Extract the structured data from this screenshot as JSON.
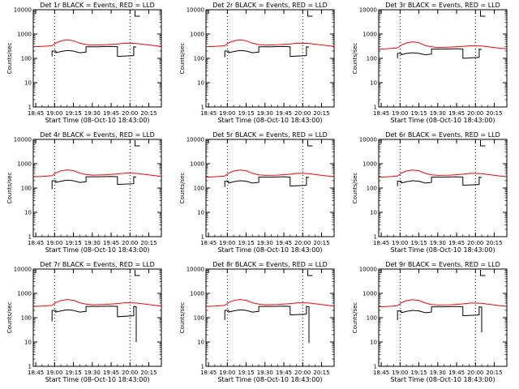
{
  "chart_data": {
    "type": "line",
    "scale": "log",
    "ylabel": "Counts/sec",
    "xlabel": "Start Time (08-Oct-10 18:43:00)",
    "ylim": [
      1,
      10000
    ],
    "y_ticks": [
      1,
      10,
      100,
      1000,
      10000
    ],
    "y_tick_labels": [
      "1",
      "10",
      "100",
      "1000",
      "10000"
    ],
    "xlim": [
      "18:43",
      "20:25"
    ],
    "x_tick_values": [
      "18:45",
      "19:00",
      "19:15",
      "19:30",
      "19:45",
      "20:00",
      "20:15"
    ],
    "x_tick_labels": [
      "18:45",
      "19:00",
      "19:15",
      "19:30",
      "19:45",
      "20:00",
      "20:15"
    ],
    "markers_dotted": [
      "19:00",
      "20:00"
    ],
    "colors": {
      "events": "#000000",
      "lld": "#ff0000"
    },
    "panels": [
      {
        "title": "Det 1r BLACK = Events, RED = LLD",
        "series": [
          {
            "color": "red",
            "x": [
              "18:43",
              "18:50",
              "18:58",
              "19:01",
              "19:05",
              "19:10",
              "19:15",
              "19:20",
              "19:25",
              "19:30",
              "19:40",
              "19:50",
              "19:56",
              "20:05",
              "20:12",
              "20:20",
              "20:25"
            ],
            "y": [
              300,
              310,
              330,
              430,
              520,
              580,
              530,
              420,
              370,
              350,
              360,
              390,
              420,
              410,
              370,
              330,
              310
            ]
          },
          {
            "color": "black",
            "x": [
              "18:58",
              "18:58",
              "19:01",
              "19:01",
              "19:05",
              "19:10",
              "19:15",
              "19:20",
              "19:25",
              "19:25",
              "19:35",
              "19:45",
              "19:50",
              "19:50",
              "20:03",
              "20:03",
              "20:05"
            ],
            "y": [
              120,
              200,
              200,
              170,
              190,
              210,
              200,
              170,
              180,
              300,
              300,
              310,
              300,
              120,
              130,
              300,
              290
            ]
          }
        ]
      },
      {
        "title": "Det 2r BLACK = Events, RED = LLD",
        "series": [
          {
            "color": "red",
            "x": [
              "18:43",
              "18:50",
              "18:58",
              "19:01",
              "19:05",
              "19:10",
              "19:15",
              "19:20",
              "19:25",
              "19:30",
              "19:40",
              "19:50",
              "19:56",
              "20:05",
              "20:12",
              "20:20",
              "20:25"
            ],
            "y": [
              300,
              310,
              330,
              430,
              520,
              580,
              530,
              420,
              370,
              350,
              360,
              390,
              420,
              410,
              370,
              330,
              310
            ]
          },
          {
            "color": "black",
            "x": [
              "18:58",
              "18:58",
              "19:01",
              "19:01",
              "19:05",
              "19:10",
              "19:15",
              "19:20",
              "19:25",
              "19:25",
              "19:35",
              "19:45",
              "19:50",
              "19:50",
              "20:03",
              "20:03",
              "20:05"
            ],
            "y": [
              110,
              200,
              200,
              170,
              190,
              210,
              200,
              170,
              180,
              300,
              300,
              310,
              300,
              120,
              130,
              300,
              290
            ]
          }
        ]
      },
      {
        "title": "Det 3r BLACK = Events, RED = LLD",
        "series": [
          {
            "color": "red",
            "x": [
              "18:43",
              "18:50",
              "18:58",
              "19:01",
              "19:05",
              "19:10",
              "19:15",
              "19:20",
              "19:25",
              "19:30",
              "19:40",
              "19:50",
              "19:56",
              "20:05",
              "20:12",
              "20:20",
              "20:25"
            ],
            "y": [
              240,
              250,
              270,
              350,
              430,
              480,
              440,
              340,
              300,
              280,
              290,
              310,
              330,
              320,
              290,
              260,
              250
            ]
          },
          {
            "color": "black",
            "x": [
              "18:58",
              "18:58",
              "19:01",
              "19:01",
              "19:05",
              "19:10",
              "19:15",
              "19:20",
              "19:25",
              "19:25",
              "19:35",
              "19:45",
              "19:50",
              "19:50",
              "20:03",
              "20:03",
              "20:05"
            ],
            "y": [
              100,
              160,
              160,
              140,
              160,
              170,
              160,
              140,
              150,
              240,
              240,
              250,
              240,
              100,
              110,
              240,
              230
            ]
          }
        ]
      },
      {
        "title": "Det 4r BLACK = Events, RED = LLD",
        "series": [
          {
            "color": "red",
            "x": [
              "18:43",
              "18:50",
              "18:58",
              "19:01",
              "19:05",
              "19:10",
              "19:15",
              "19:20",
              "19:25",
              "19:30",
              "19:40",
              "19:50",
              "19:56",
              "20:05",
              "20:12",
              "20:20",
              "20:25"
            ],
            "y": [
              290,
              300,
              320,
              420,
              510,
              560,
              520,
              410,
              360,
              340,
              350,
              380,
              410,
              400,
              360,
              320,
              300
            ]
          },
          {
            "color": "black",
            "x": [
              "18:58",
              "18:58",
              "19:01",
              "19:01",
              "19:05",
              "19:10",
              "19:15",
              "19:20",
              "19:25",
              "19:25",
              "19:35",
              "19:45",
              "19:50",
              "19:50",
              "20:03",
              "20:03",
              "20:05"
            ],
            "y": [
              90,
              200,
              200,
              170,
              190,
              210,
              200,
              170,
              180,
              290,
              290,
              300,
              290,
              140,
              150,
              290,
              280
            ]
          }
        ]
      },
      {
        "title": "Det 5r BLACK = Events, RED = LLD",
        "series": [
          {
            "color": "red",
            "x": [
              "18:43",
              "18:50",
              "18:58",
              "19:01",
              "19:05",
              "19:10",
              "19:15",
              "19:20",
              "19:25",
              "19:30",
              "19:40",
              "19:50",
              "19:56",
              "20:05",
              "20:12",
              "20:20",
              "20:25"
            ],
            "y": [
              280,
              290,
              310,
              410,
              500,
              550,
              510,
              400,
              350,
              330,
              340,
              370,
              400,
              390,
              350,
              310,
              290
            ]
          },
          {
            "color": "black",
            "x": [
              "18:58",
              "18:58",
              "19:01",
              "19:01",
              "19:05",
              "19:10",
              "19:15",
              "19:20",
              "19:25",
              "19:25",
              "19:35",
              "19:45",
              "19:50",
              "19:50",
              "20:03",
              "20:03",
              "20:05"
            ],
            "y": [
              110,
              190,
              190,
              160,
              180,
              200,
              190,
              160,
              170,
              280,
              280,
              290,
              280,
              120,
              130,
              280,
              270
            ]
          }
        ]
      },
      {
        "title": "Det 6r BLACK = Events, RED = LLD",
        "series": [
          {
            "color": "red",
            "x": [
              "18:43",
              "18:50",
              "18:58",
              "19:01",
              "19:05",
              "19:10",
              "19:15",
              "19:20",
              "19:25",
              "19:30",
              "19:40",
              "19:50",
              "19:56",
              "20:05",
              "20:12",
              "20:20",
              "20:25"
            ],
            "y": [
              280,
              290,
              310,
              410,
              500,
              550,
              510,
              400,
              350,
              330,
              340,
              370,
              400,
              390,
              350,
              310,
              290
            ]
          },
          {
            "color": "black",
            "x": [
              "18:58",
              "18:58",
              "19:01",
              "19:01",
              "19:05",
              "19:10",
              "19:15",
              "19:20",
              "19:25",
              "19:25",
              "19:35",
              "19:45",
              "19:50",
              "19:50",
              "20:03",
              "20:03",
              "20:05"
            ],
            "y": [
              120,
              190,
              190,
              160,
              180,
              200,
              190,
              160,
              170,
              280,
              280,
              290,
              280,
              130,
              140,
              280,
              270
            ]
          }
        ]
      },
      {
        "title": "Det 7r BLACK = Events, RED = LLD",
        "series": [
          {
            "color": "red",
            "x": [
              "18:43",
              "18:50",
              "18:58",
              "19:01",
              "19:05",
              "19:10",
              "19:15",
              "19:20",
              "19:25",
              "19:30",
              "19:40",
              "19:50",
              "19:56",
              "20:05",
              "20:12",
              "20:20",
              "20:25"
            ],
            "y": [
              290,
              300,
              320,
              420,
              510,
              560,
              520,
              410,
              360,
              340,
              350,
              380,
              410,
              400,
              360,
              320,
              300
            ]
          },
          {
            "color": "black",
            "x": [
              "18:58",
              "18:58",
              "19:01",
              "19:01",
              "19:05",
              "19:10",
              "19:15",
              "19:20",
              "19:25",
              "19:25",
              "19:35",
              "19:45",
              "19:50",
              "19:50",
              "20:03",
              "20:03",
              "20:05",
              "20:05",
              "20:05"
            ],
            "y": [
              70,
              200,
              200,
              170,
              190,
              210,
              200,
              170,
              180,
              290,
              290,
              300,
              290,
              110,
              120,
              290,
              280,
              10,
              280
            ]
          }
        ]
      },
      {
        "title": "Det 8r BLACK = Events, RED = LLD",
        "series": [
          {
            "color": "red",
            "x": [
              "18:43",
              "18:50",
              "18:58",
              "19:01",
              "19:05",
              "19:10",
              "19:15",
              "19:20",
              "19:25",
              "19:30",
              "19:40",
              "19:50",
              "19:56",
              "20:05",
              "20:12",
              "20:20",
              "20:25"
            ],
            "y": [
              290,
              300,
              320,
              420,
              510,
              560,
              520,
              410,
              360,
              340,
              350,
              380,
              410,
              400,
              360,
              320,
              300
            ]
          },
          {
            "color": "black",
            "x": [
              "18:58",
              "18:58",
              "19:01",
              "19:01",
              "19:05",
              "19:10",
              "19:15",
              "19:20",
              "19:25",
              "19:25",
              "19:35",
              "19:45",
              "19:50",
              "19:50",
              "20:03",
              "20:03",
              "20:05",
              "20:05",
              "20:05"
            ],
            "y": [
              80,
              200,
              200,
              170,
              190,
              210,
              200,
              170,
              180,
              290,
              290,
              300,
              290,
              130,
              140,
              290,
              280,
              9,
              280
            ]
          }
        ]
      },
      {
        "title": "Det 9r BLACK = Events, RED = LLD",
        "series": [
          {
            "color": "red",
            "x": [
              "18:43",
              "18:50",
              "18:58",
              "19:01",
              "19:05",
              "19:10",
              "19:15",
              "19:20",
              "19:25",
              "19:30",
              "19:40",
              "19:50",
              "19:56",
              "20:05",
              "20:12",
              "20:20",
              "20:25"
            ],
            "y": [
              280,
              290,
              310,
              410,
              500,
              550,
              510,
              400,
              350,
              330,
              340,
              370,
              400,
              390,
              350,
              310,
              290
            ]
          },
          {
            "color": "black",
            "x": [
              "18:58",
              "18:58",
              "19:01",
              "19:01",
              "19:05",
              "19:10",
              "19:15",
              "19:20",
              "19:25",
              "19:25",
              "19:35",
              "19:45",
              "19:50",
              "19:50",
              "20:03",
              "20:03",
              "20:05",
              "20:05",
              "20:05"
            ],
            "y": [
              80,
              190,
              190,
              160,
              180,
              200,
              190,
              160,
              170,
              280,
              280,
              290,
              280,
              120,
              130,
              280,
              270,
              25,
              270
            ]
          }
        ]
      }
    ]
  }
}
